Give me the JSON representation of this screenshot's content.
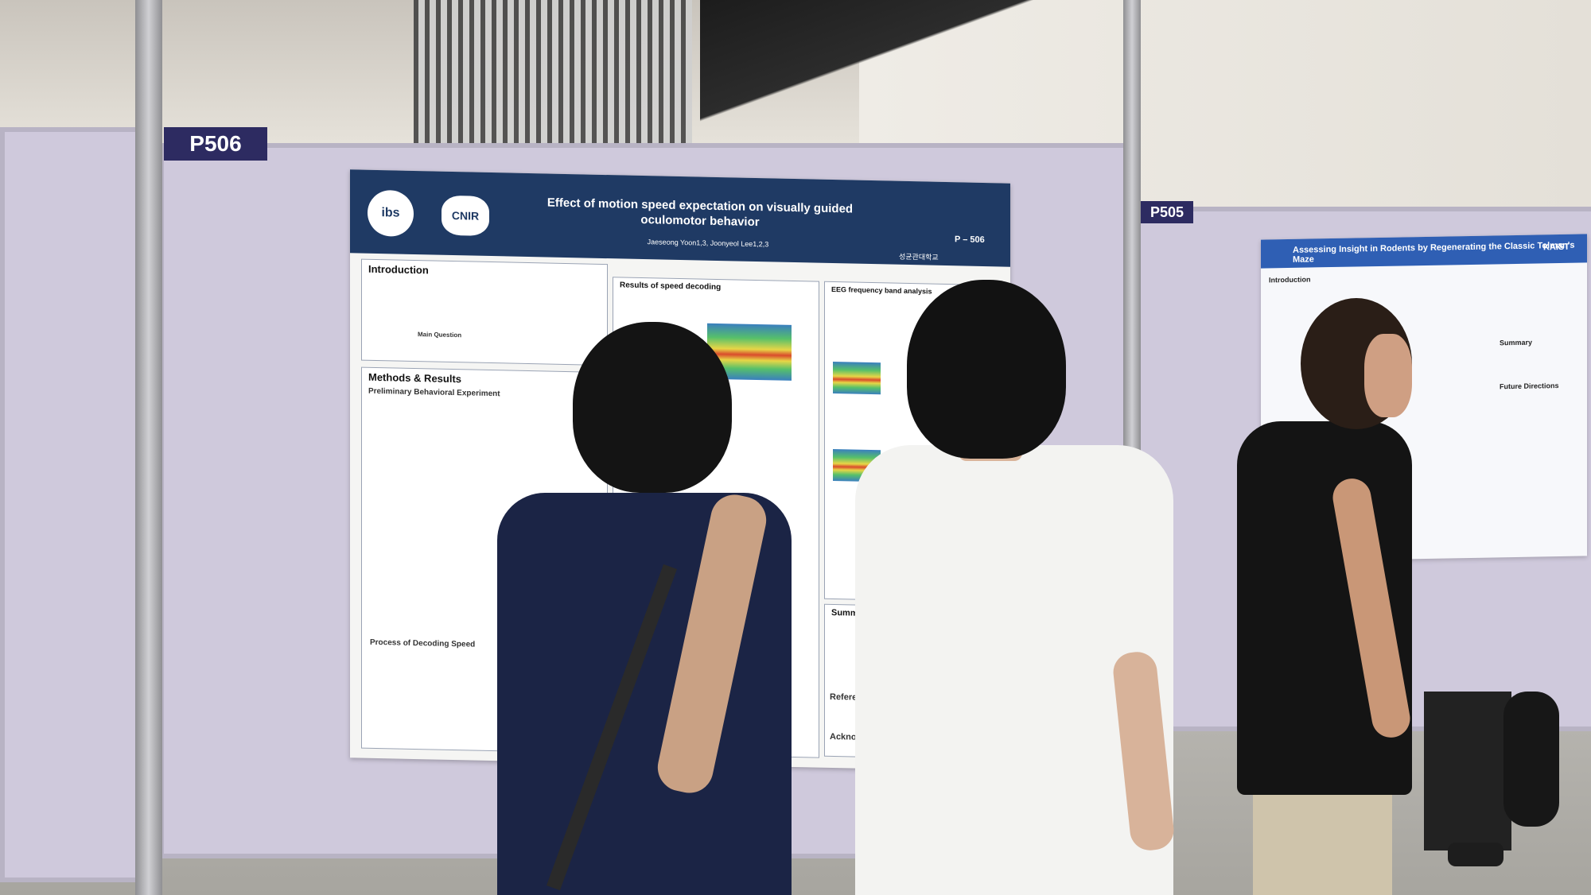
{
  "scene": {
    "description_tags": [
      "poster session",
      "conference hall",
      "people reading posters"
    ]
  },
  "boards": {
    "left_number": "P506",
    "right_number": "P505"
  },
  "poster_main": {
    "title": "Effect of motion speed expectation on visually guided oculomotor behavior",
    "authors": "Jaeseong Yoon1,3, Joonyeol Lee1,2,3",
    "poster_id": "P – 506",
    "university": "성균관대학교",
    "logo_left": "ibs",
    "logo_cnir": "CNIR",
    "sections": {
      "introduction": "Introduction",
      "main_question": "Main Question",
      "methods": "Methods & Results",
      "preliminary": "Preliminary Behavioral Experiment",
      "results_decoding": "Results of speed decoding",
      "eeg": "EEG frequency band analysis",
      "process": "Process of Decoding Speed",
      "summary": "Summary",
      "references": "Refere",
      "acknowledgement": "Acknowl"
    }
  },
  "poster_right": {
    "title": "Assessing Insight in Rodents by Regenerating the Classic Tolman's Maze",
    "logo": "KAIST",
    "sections": {
      "introduction": "Introduction",
      "summary": "Summary",
      "future": "Future Directions"
    }
  },
  "colors": {
    "poster_header": "#1f3a64",
    "board": "#cfc9dc",
    "number_tag": "#2d2b61",
    "poster2_header": "#2f5fb4"
  }
}
